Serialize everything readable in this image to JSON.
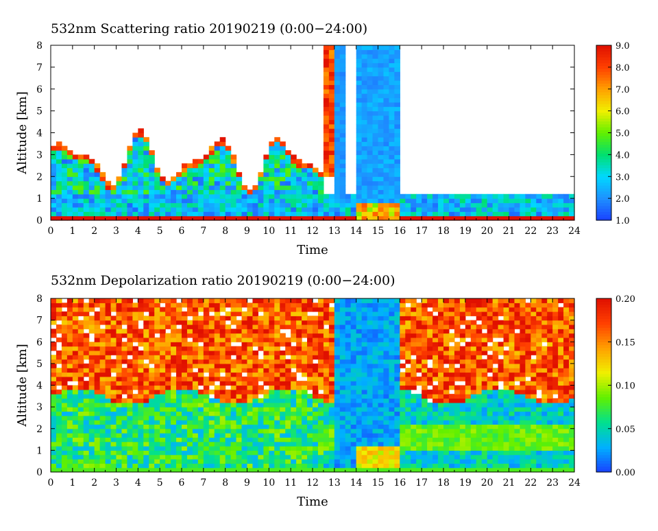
{
  "chart_data": [
    {
      "type": "heatmap",
      "title": "532nm Scattering ratio  20190219 (0:00−24:00)",
      "xlabel": "Time",
      "ylabel": "Altitude [km]",
      "xlim": [
        0,
        24
      ],
      "ylim": [
        0,
        8
      ],
      "x_ticks": [
        "0",
        "1",
        "2",
        "3",
        "4",
        "5",
        "6",
        "7",
        "8",
        "9",
        "10",
        "11",
        "12",
        "13",
        "14",
        "15",
        "16",
        "17",
        "18",
        "19",
        "20",
        "21",
        "22",
        "23",
        "24"
      ],
      "y_ticks": [
        "0",
        "1",
        "2",
        "3",
        "4",
        "5",
        "6",
        "7",
        "8"
      ],
      "colorbar": {
        "range": [
          1.0,
          9.0
        ],
        "tick_labels": [
          "1.0",
          "2.0",
          "3.0",
          "4.0",
          "5.0",
          "6.0",
          "7.0",
          "8.0",
          "9.0"
        ],
        "tick_values": [
          1,
          2,
          3,
          4,
          5,
          6,
          7,
          8,
          9
        ],
        "colormap": [
          "#1a40ff",
          "#1e90ff",
          "#00d8ff",
          "#00e070",
          "#60f000",
          "#f0f000",
          "#ffa000",
          "#ff4000",
          "#e01000"
        ]
      },
      "grid": false,
      "legend": "colorbar-right",
      "features": {
        "boundary_layer": {
          "time_range": [
            0,
            24
          ],
          "altitude_range": [
            0,
            1.2
          ],
          "value": 2.0
        },
        "aerosol_layer": {
          "time_range": [
            0,
            12.5
          ],
          "altitude_top": 3.3,
          "value": 3.0
        },
        "cloud_base": {
          "time_range": [
            12.5,
            13.0
          ],
          "altitude_range": [
            2,
            8
          ],
          "value": 8.5
        },
        "precipitation_columns": [
          {
            "time_range": [
              13.1,
              13.6
            ],
            "value": 2.0
          },
          {
            "time_range": [
              14.0,
              16.0
            ],
            "value": 2.0
          }
        ]
      }
    },
    {
      "type": "heatmap",
      "title": "532nm Depolarization ratio  20190219 (0:00−24:00)",
      "xlabel": "Time",
      "ylabel": "Altitude [km]",
      "xlim": [
        0,
        24
      ],
      "ylim": [
        0,
        8
      ],
      "x_ticks": [
        "0",
        "1",
        "2",
        "3",
        "4",
        "5",
        "6",
        "7",
        "8",
        "9",
        "10",
        "11",
        "12",
        "13",
        "14",
        "15",
        "16",
        "17",
        "18",
        "19",
        "20",
        "21",
        "22",
        "23",
        "24"
      ],
      "y_ticks": [
        "0",
        "1",
        "2",
        "3",
        "4",
        "5",
        "6",
        "7",
        "8"
      ],
      "colorbar": {
        "range": [
          0.0,
          0.2
        ],
        "tick_labels": [
          "0.00",
          "0.05",
          "0.10",
          "0.15",
          "0.20"
        ],
        "tick_values": [
          0.0,
          0.05,
          0.1,
          0.15,
          0.2
        ],
        "colormap": [
          "#1a40ff",
          "#00b0ff",
          "#00e090",
          "#60f000",
          "#f0f000",
          "#ffa000",
          "#ff4000",
          "#e01000"
        ]
      },
      "grid": false,
      "legend": "colorbar-right",
      "features": {
        "upper_noise": {
          "time_range": [
            0,
            24
          ],
          "altitude_range": [
            3.5,
            8
          ],
          "value": 0.2
        },
        "low_clouds": {
          "time_range": [
            0,
            12.5
          ],
          "altitude_range": [
            0,
            3.3
          ],
          "value": 0.06
        },
        "precipitation_columns": {
          "time_range": [
            13.0,
            16.0
          ],
          "value": 0.02
        },
        "melting_layer": {
          "time_range": [
            14.0,
            16.0
          ],
          "altitude_range": [
            0.3,
            1.2
          ],
          "value": 0.12
        },
        "lower_layer": {
          "time_range": [
            16.5,
            24
          ],
          "altitude_range": [
            1.0,
            2.2
          ],
          "value": 0.08
        }
      }
    }
  ]
}
